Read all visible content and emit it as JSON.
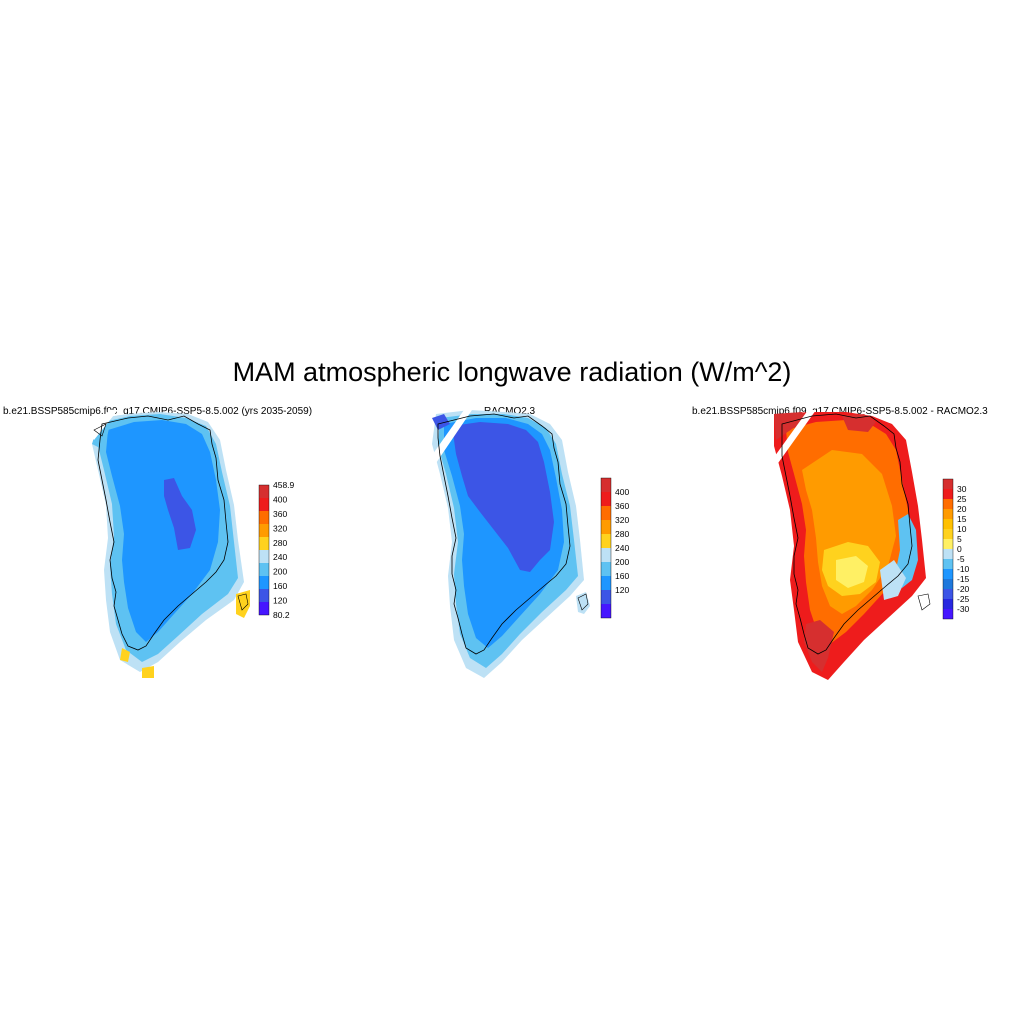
{
  "figure": {
    "title": "MAM atmospheric longwave radiation (W/m^2)"
  },
  "panels": [
    {
      "id": "model",
      "title": "b.e21.BSSP585cmip6.f09_g17.CMIP6-SSP5-8.5.002 (yrs 2035-2059)",
      "colorbar": {
        "labels": [
          "458.9",
          "400",
          "360",
          "320",
          "280",
          "240",
          "200",
          "160",
          "120",
          "80.2"
        ],
        "colors": [
          "#d62f2f",
          "#ee1c1c",
          "#ff6d00",
          "#ff9b00",
          "#ffd21e",
          "#bde1f5",
          "#5ec2f2",
          "#1e96ff",
          "#3c55e6",
          "#4616ff"
        ]
      }
    },
    {
      "id": "racmo",
      "title": "RACMO2.3",
      "colorbar": {
        "labels": [
          "400",
          "360",
          "320",
          "280",
          "240",
          "200",
          "160",
          "120"
        ],
        "colors": [
          "#d62f2f",
          "#ee1c1c",
          "#ff6d00",
          "#ff9b00",
          "#ffd21e",
          "#bde1f5",
          "#5ec2f2",
          "#1e96ff",
          "#3c55e6",
          "#4616ff"
        ]
      }
    },
    {
      "id": "diff",
      "title": "b.e21.BSSP585cmip6.f09_g17.CMIP6-SSP5-8.5.002 - RACMO2.3",
      "colorbar": {
        "labels": [
          "30",
          "25",
          "20",
          "15",
          "10",
          "5",
          "0",
          "-5",
          "-10",
          "-15",
          "-20",
          "-25",
          "-30"
        ],
        "colors": [
          "#d62f2f",
          "#ee1c1c",
          "#ff6d00",
          "#ff9b00",
          "#ffc000",
          "#ffd21e",
          "#fff064",
          "#bde1f5",
          "#5ec2f2",
          "#1e96ff",
          "#1e78dc",
          "#3c55e6",
          "#2828e0",
          "#4616ff"
        ]
      }
    }
  ]
}
